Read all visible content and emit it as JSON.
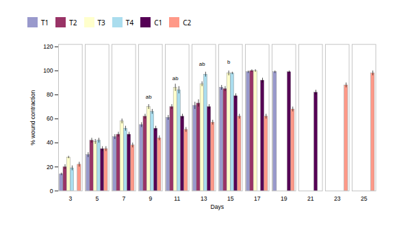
{
  "chart_data": {
    "type": "bar",
    "categories": [
      "3",
      "5",
      "7",
      "9",
      "11",
      "13",
      "15",
      "17",
      "19",
      "21",
      "23",
      "25"
    ],
    "series": [
      {
        "name": "T1",
        "color": "#9999CC",
        "values": [
          14,
          30,
          45,
          55,
          61,
          71,
          86,
          99,
          99,
          null,
          null,
          null
        ],
        "errors": [
          1,
          2,
          2,
          2,
          2,
          3,
          2,
          1,
          1,
          null,
          null,
          null
        ]
      },
      {
        "name": "T2",
        "color": "#993366",
        "values": [
          20,
          42,
          47,
          62,
          70,
          73,
          85,
          100,
          null,
          null,
          null,
          null
        ],
        "errors": [
          2,
          2,
          2,
          2,
          2,
          3,
          2,
          1,
          null,
          null,
          null,
          null
        ]
      },
      {
        "name": "T3",
        "color": "#FFFFCC",
        "values": [
          28,
          41,
          58,
          70,
          86,
          89,
          98,
          100,
          null,
          null,
          null,
          null
        ],
        "errors": [
          1,
          2,
          2,
          2,
          3,
          2,
          2,
          1,
          null,
          null,
          null,
          null
        ]
      },
      {
        "name": "T4",
        "color": "#AADDEE",
        "values": [
          19,
          42,
          52,
          66,
          84,
          97,
          98,
          null,
          null,
          null,
          null,
          null
        ],
        "errors": [
          2,
          2,
          2,
          2,
          3,
          2,
          1,
          null,
          null,
          null,
          null,
          null
        ]
      },
      {
        "name": "C1",
        "color": "#550055",
        "values": [
          null,
          35,
          47,
          52,
          62,
          70,
          79,
          92,
          99,
          82,
          null,
          null
        ],
        "errors": [
          null,
          2,
          2,
          2,
          2,
          2,
          2,
          2,
          1,
          2,
          null,
          null
        ]
      },
      {
        "name": "C2",
        "color": "#FF9988",
        "values": [
          22,
          35,
          38,
          44,
          51,
          57,
          62,
          62,
          68,
          null,
          88,
          98
        ],
        "errors": [
          2,
          2,
          2,
          2,
          2,
          2,
          2,
          2,
          2,
          null,
          2,
          2
        ]
      }
    ],
    "annotations": [
      {
        "text": "ab",
        "x": "9",
        "y": 77,
        "series": "T3"
      },
      {
        "text": "ab",
        "x": "11",
        "y": 92,
        "series": "T3"
      },
      {
        "text": "ab",
        "x": "13",
        "y": 104,
        "series": "T3"
      },
      {
        "text": "b",
        "x": "15",
        "y": 106,
        "series": "T3"
      }
    ],
    "xlabel": "Days",
    "ylabel": "% wound contraction",
    "ylim": [
      0,
      122
    ],
    "yticks": [
      0,
      20,
      40,
      60,
      80,
      100,
      120
    ],
    "grid": false,
    "legend": "top"
  }
}
